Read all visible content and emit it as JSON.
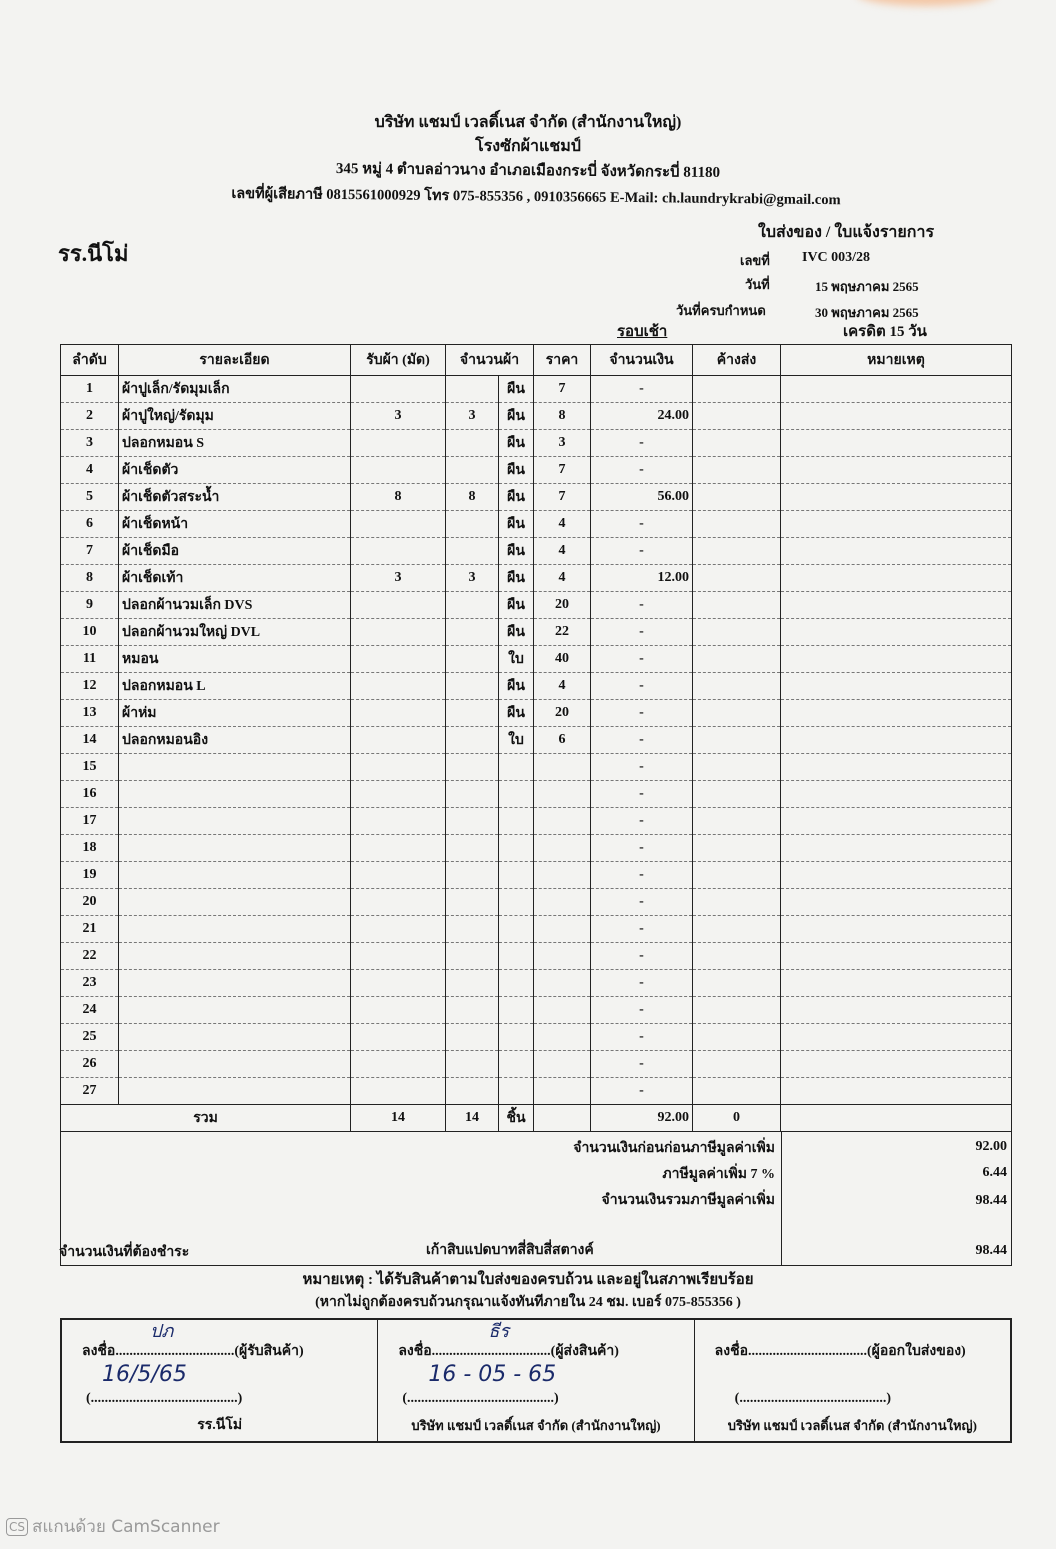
{
  "company": {
    "name": "บริษัท แชมป์ เวลดิ์เนส จำกัด (สำนักงานใหญ่)",
    "plant": "โรงซักผ้าแชมป์",
    "address": "345 หมู่ 4 ตำบลอ่าวนาง อำเภอเมืองกระบี่ จังหวัดกระบี่ 81180",
    "contact": "เลขที่ผู้เสียภาษี 0815561000929 โทร 075-855356 , 0910356665 E-Mail: ch.laundrykrabi@gmail.com"
  },
  "customer": "รร.นีโม่",
  "doc": {
    "title": "ใบส่งของ / ใบแจ้งรายการ",
    "no_label": "เลขที่",
    "no": "IVC 003/28",
    "date_label": "วันที่",
    "date": "15 พฤษภาคม 2565",
    "due_label": "วันที่ครบกำหนด",
    "due": "30 พฤษภาคม 2565",
    "round": "รอบเช้า",
    "credit": "เครดิต 15 วัน"
  },
  "columns": [
    "ลำดับ",
    "รายละเอียด",
    "รับผ้า (มัด)",
    "จำนวนผ้า",
    "ราคา",
    "จำนวนเงิน",
    "ค้างส่ง",
    "หมายเหตุ"
  ],
  "items": [
    {
      "no": "1",
      "desc": "ผ้าปูเล็ก/รัดมุมเล็ก",
      "recv": "",
      "qty": "",
      "unit": "ผืน",
      "price": "7",
      "amount": "-"
    },
    {
      "no": "2",
      "desc": "ผ้าปูใหญ่/รัดมุม",
      "recv": "3",
      "qty": "3",
      "unit": "ผืน",
      "price": "8",
      "amount": "24.00"
    },
    {
      "no": "3",
      "desc": "ปลอกหมอน S",
      "recv": "",
      "qty": "",
      "unit": "ผืน",
      "price": "3",
      "amount": "-"
    },
    {
      "no": "4",
      "desc": "ผ้าเช็ดตัว",
      "recv": "",
      "qty": "",
      "unit": "ผืน",
      "price": "7",
      "amount": "-"
    },
    {
      "no": "5",
      "desc": "ผ้าเช็ดตัวสระน้ำ",
      "recv": "8",
      "qty": "8",
      "unit": "ผืน",
      "price": "7",
      "amount": "56.00"
    },
    {
      "no": "6",
      "desc": "ผ้าเช็ดหน้า",
      "recv": "",
      "qty": "",
      "unit": "ผืน",
      "price": "4",
      "amount": "-"
    },
    {
      "no": "7",
      "desc": "ผ้าเช็ดมือ",
      "recv": "",
      "qty": "",
      "unit": "ผืน",
      "price": "4",
      "amount": "-"
    },
    {
      "no": "8",
      "desc": "ผ้าเช็ดเท้า",
      "recv": "3",
      "qty": "3",
      "unit": "ผืน",
      "price": "4",
      "amount": "12.00"
    },
    {
      "no": "9",
      "desc": "ปลอกผ้านวมเล็ก DVS",
      "recv": "",
      "qty": "",
      "unit": "ผืน",
      "price": "20",
      "amount": "-"
    },
    {
      "no": "10",
      "desc": "ปลอกผ้านวมใหญ่ DVL",
      "recv": "",
      "qty": "",
      "unit": "ผืน",
      "price": "22",
      "amount": "-"
    },
    {
      "no": "11",
      "desc": "หมอน",
      "recv": "",
      "qty": "",
      "unit": "ใบ",
      "price": "40",
      "amount": "-"
    },
    {
      "no": "12",
      "desc": "ปลอกหมอน L",
      "recv": "",
      "qty": "",
      "unit": "ผืน",
      "price": "4",
      "amount": "-"
    },
    {
      "no": "13",
      "desc": "ผ้าห่ม",
      "recv": "",
      "qty": "",
      "unit": "ผืน",
      "price": "20",
      "amount": "-"
    },
    {
      "no": "14",
      "desc": "ปลอกหมอนอิง",
      "recv": "",
      "qty": "",
      "unit": "ใบ",
      "price": "6",
      "amount": "-"
    },
    {
      "no": "15",
      "amount": "-"
    },
    {
      "no": "16",
      "amount": "-"
    },
    {
      "no": "17",
      "amount": "-"
    },
    {
      "no": "18",
      "amount": "-"
    },
    {
      "no": "19",
      "amount": "-"
    },
    {
      "no": "20",
      "amount": "-"
    },
    {
      "no": "21",
      "amount": "-"
    },
    {
      "no": "22",
      "amount": "-"
    },
    {
      "no": "23",
      "amount": "-"
    },
    {
      "no": "24",
      "amount": "-"
    },
    {
      "no": "25",
      "amount": "-"
    },
    {
      "no": "26",
      "amount": "-"
    },
    {
      "no": "27",
      "amount": "-"
    }
  ],
  "total": {
    "label": "รวม",
    "recv": "14",
    "qty": "14",
    "unit": "ชิ้น",
    "amount": "92.00",
    "pending": "0"
  },
  "summary": {
    "before_vat_label": "จำนวนเงินก่อนก่อนภาษีมูลค่าเพิ่ม",
    "before_vat": "92.00",
    "vat_label": "ภาษีมูลค่าเพิ่ม 7 %",
    "vat": "6.44",
    "with_vat_label": "จำนวนเงินรวมภาษีมูลค่าเพิ่ม",
    "with_vat": "98.44",
    "due_label": "จำนวนเงินที่ต้องชำระ",
    "due_words": "เก้าสิบแปดบาทสี่สิบสี่สตางค์",
    "due": "98.44"
  },
  "note1": "หมายเหตุ : ได้รับสินค้าตามใบส่งของครบถ้วน และอยู่ในสภาพเรียบร้อย",
  "note2": "(หากไม่ถูกต้องครบถ้วนกรุณาแจ้งทันทีภายใน 24 ชม. เบอร์ 075-855356 )",
  "signatures": [
    {
      "sign": "ลงชื่อ..................................(ผู้รับสินค้า)",
      "paren": "(..........................................)",
      "org": "รร.นีโม่",
      "hand_sign": "ปภ",
      "hand_date": "16/5/65"
    },
    {
      "sign": "ลงชื่อ..................................(ผู้ส่งสินค้า)",
      "paren": "(..........................................)",
      "org": "บริษัท แชมป์ เวลดิ์เนส จำกัด (สำนักงานใหญ่)",
      "hand_sign": "ธีร",
      "hand_date": "16 - 05 - 65"
    },
    {
      "sign": "ลงชื่อ..................................(ผู้ออกใบส่งของ)",
      "paren": "(..........................................)",
      "org": "บริษัท แชมป์ เวลดิ์เนส จำกัด (สำนักงานใหญ่)"
    }
  ],
  "watermark": {
    "icon": "camscanner-logo",
    "logo_text": "CS",
    "text": "สแกนด้วย CamScanner"
  }
}
